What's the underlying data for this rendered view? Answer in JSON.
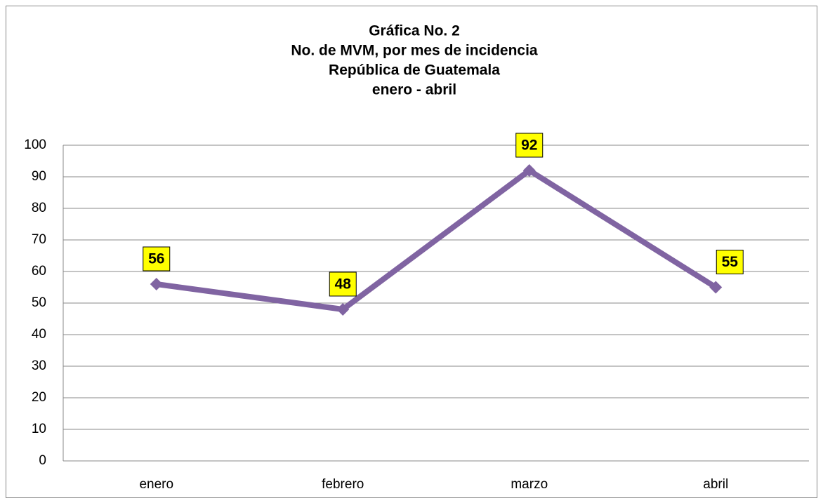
{
  "chart_data": {
    "type": "line",
    "title": [
      "Gráfica No. 2",
      "No. de MVM, por mes de incidencia",
      "República de Guatemala",
      "enero - abril"
    ],
    "categories": [
      "enero",
      "febrero",
      "marzo",
      "abril"
    ],
    "series": [
      {
        "name": "MVM",
        "color": "#8064a2",
        "values": [
          56,
          48,
          92,
          55
        ]
      }
    ],
    "ylim": [
      0,
      100
    ],
    "yticks": [
      0,
      10,
      20,
      30,
      40,
      50,
      60,
      70,
      80,
      90,
      100
    ],
    "grid": true,
    "label_color": "#ffff00"
  }
}
